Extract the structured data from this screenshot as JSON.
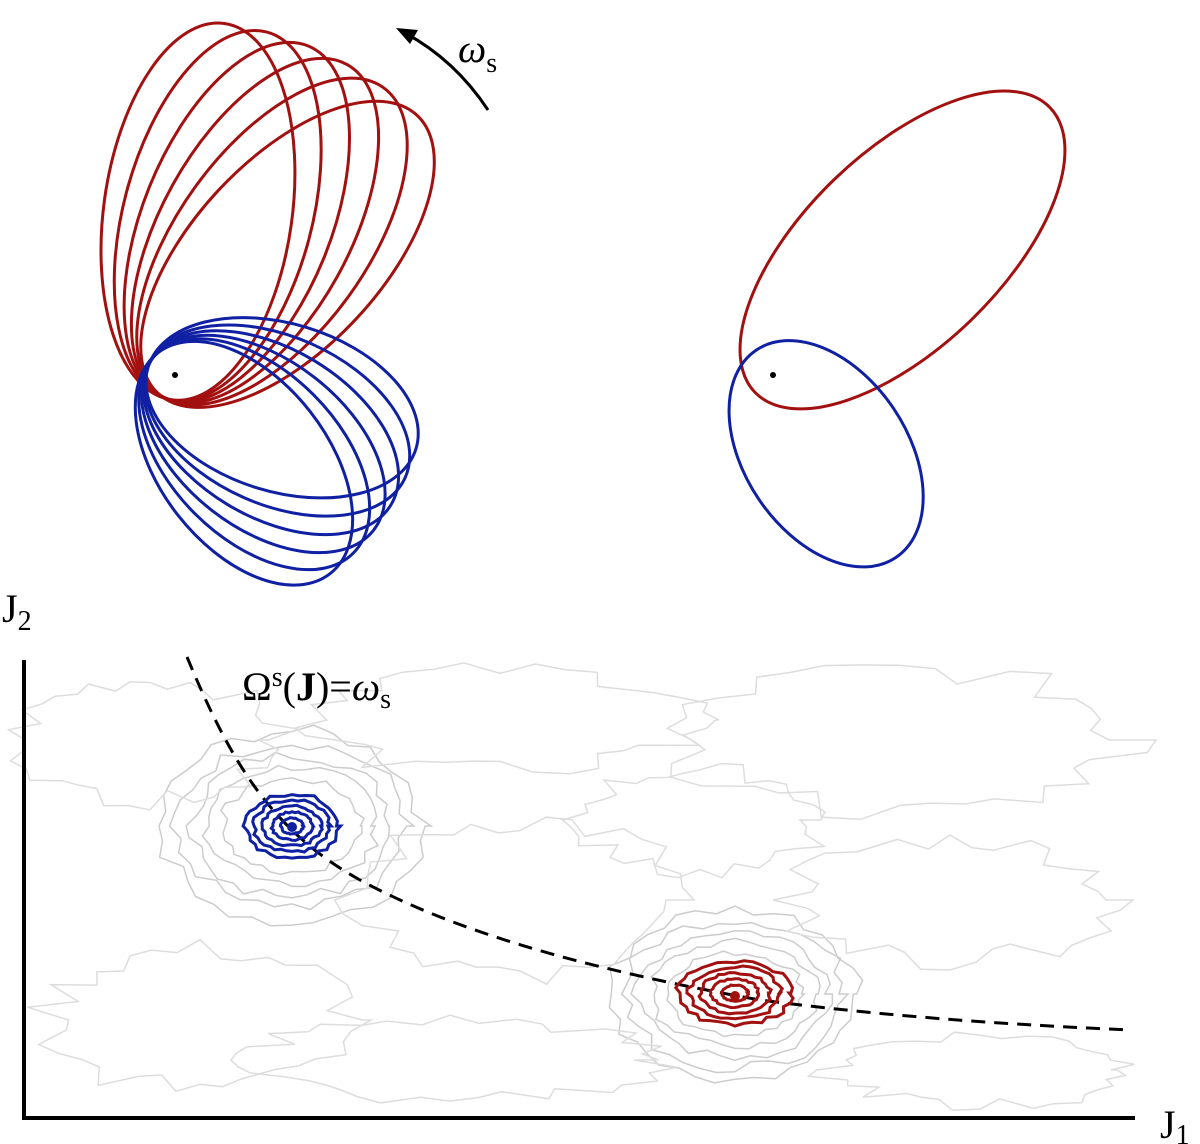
{
  "top": {
    "rotation_label": {
      "base": "ω",
      "sub": "s"
    }
  },
  "bottom": {
    "y_axis_label": {
      "base": "J",
      "sub": "2"
    },
    "x_axis_label": {
      "base": "J",
      "sub": "1"
    },
    "curve_label": {
      "base": "Ω",
      "sup": "s",
      "open": "(",
      "arg": "J",
      "close": ")=",
      "rhs": "ω",
      "rhs_sub": "s"
    }
  }
}
